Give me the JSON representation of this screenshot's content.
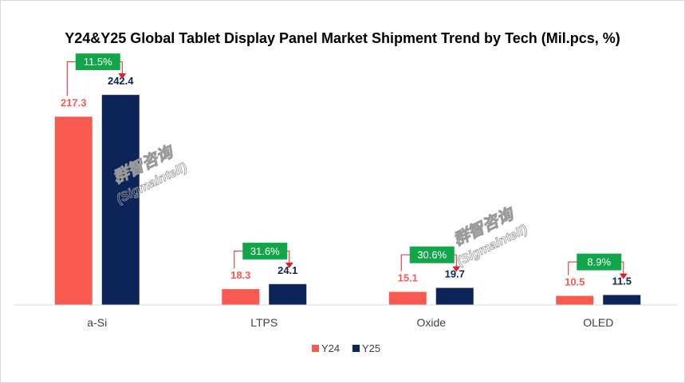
{
  "colors": {
    "y24": "#f95a4f",
    "y25": "#0d2459",
    "growth_box": "#12a64a",
    "connector": "#e02020",
    "axis": "#d9d9d9"
  },
  "watermark": {
    "cn": "群智咨询",
    "en": "(Sigmaintell)"
  },
  "chart_data": {
    "type": "bar",
    "title": "Y24&Y25 Global Tablet Display Panel Market Shipment Trend by Tech (Mil.pcs, %)",
    "xlabel": "",
    "ylabel": "",
    "ylim": [
      0,
      260
    ],
    "grid": false,
    "legend_position": "bottom",
    "categories": [
      "a-Si",
      "LTPS",
      "Oxide",
      "OLED"
    ],
    "series": [
      {
        "name": "Y24",
        "values": [
          217.3,
          18.3,
          15.1,
          10.5
        ],
        "labels": [
          "217.3",
          "18.3",
          "15.1",
          "10.5"
        ]
      },
      {
        "name": "Y25",
        "values": [
          242.4,
          24.1,
          19.7,
          11.5
        ],
        "labels": [
          "242.4",
          "24.1",
          "19.7",
          "11.5"
        ]
      }
    ],
    "growth": [
      "11.5%",
      "31.6%",
      "30.6%",
      "8.9%"
    ]
  }
}
